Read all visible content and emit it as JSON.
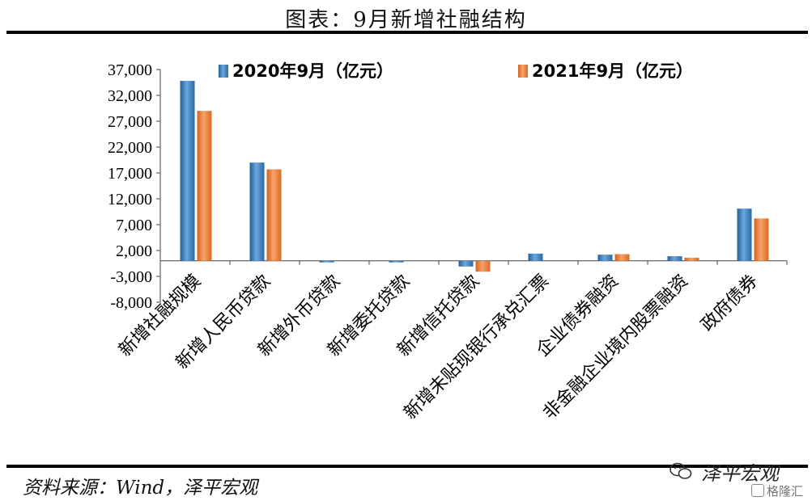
{
  "title": "图表：9月新增社融结构",
  "source": "资料来源：Wind，泽平宏观",
  "watermark": "泽平宏观",
  "watermark2": "格隆汇",
  "colors": {
    "series1": "#3a7fbf",
    "series2": "#ea7d35",
    "axis": "#444444"
  },
  "chart_data": {
    "type": "bar",
    "categories": [
      "新增社融规模",
      "新增人民币贷款",
      "新增外币贷款",
      "新增委托贷款",
      "新增信托贷款",
      "新增未贴现银行承兑汇票",
      "企业债券融资",
      "非金融企业境内股票融资",
      "政府债券"
    ],
    "series": [
      {
        "name": "2020年9月（亿元）",
        "values": [
          34800,
          19000,
          -300,
          -300,
          -1100,
          1400,
          1200,
          900,
          10100
        ]
      },
      {
        "name": "2021年9月（亿元）",
        "values": [
          29000,
          17700,
          0,
          0,
          -2100,
          0,
          1300,
          600,
          8200
        ]
      }
    ],
    "ylim": [
      -8000,
      37000
    ],
    "yticks": [
      37000,
      32000,
      27000,
      22000,
      17000,
      12000,
      7000,
      2000,
      -3000,
      -8000
    ],
    "ytick_labels": [
      "37,000",
      "32,000",
      "27,000",
      "22,000",
      "17,000",
      "12,000",
      "7,000",
      "2,000",
      "-3,000",
      "-8,000"
    ],
    "legend": "top",
    "grid": false
  }
}
